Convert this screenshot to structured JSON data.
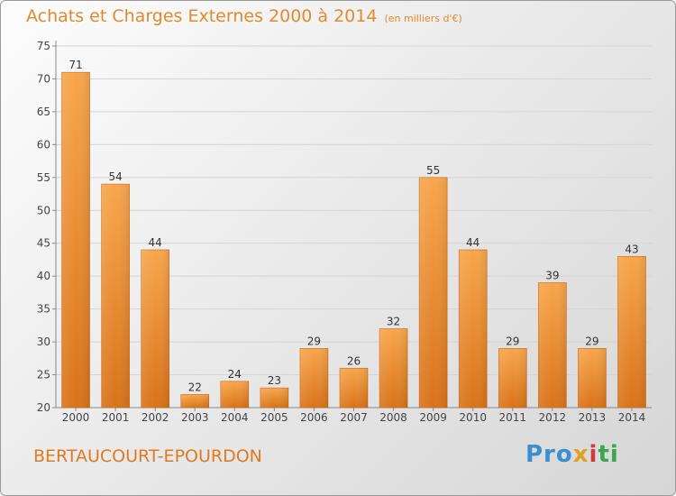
{
  "header": {
    "title": "Achats et Charges Externes 2000 à 2014",
    "subtitle": "(en milliers d'€)"
  },
  "footer": {
    "place": "BERTAUCOURT-EPOURDON",
    "logo": {
      "parts": [
        "Pro",
        "x",
        "i",
        "ti"
      ]
    }
  },
  "colors": {
    "bar_light": "#f7a64c",
    "bar_dark": "#d9731a",
    "title": "#e08a2e"
  },
  "chart_data": {
    "type": "bar",
    "title": "Achats et Charges Externes 2000 à 2014",
    "subtitle": "(en milliers d'€)",
    "xlabel": "",
    "ylabel": "",
    "ylim": [
      20,
      75
    ],
    "yticks": [
      20,
      25,
      30,
      35,
      40,
      45,
      50,
      55,
      60,
      65,
      70,
      75
    ],
    "grid": true,
    "categories": [
      "2000",
      "2001",
      "2002",
      "2003",
      "2004",
      "2005",
      "2006",
      "2007",
      "2008",
      "2009",
      "2010",
      "2011",
      "2012",
      "2013",
      "2014"
    ],
    "values": [
      71,
      54,
      44,
      22,
      24,
      23,
      29,
      26,
      32,
      55,
      44,
      29,
      39,
      29,
      43
    ]
  }
}
